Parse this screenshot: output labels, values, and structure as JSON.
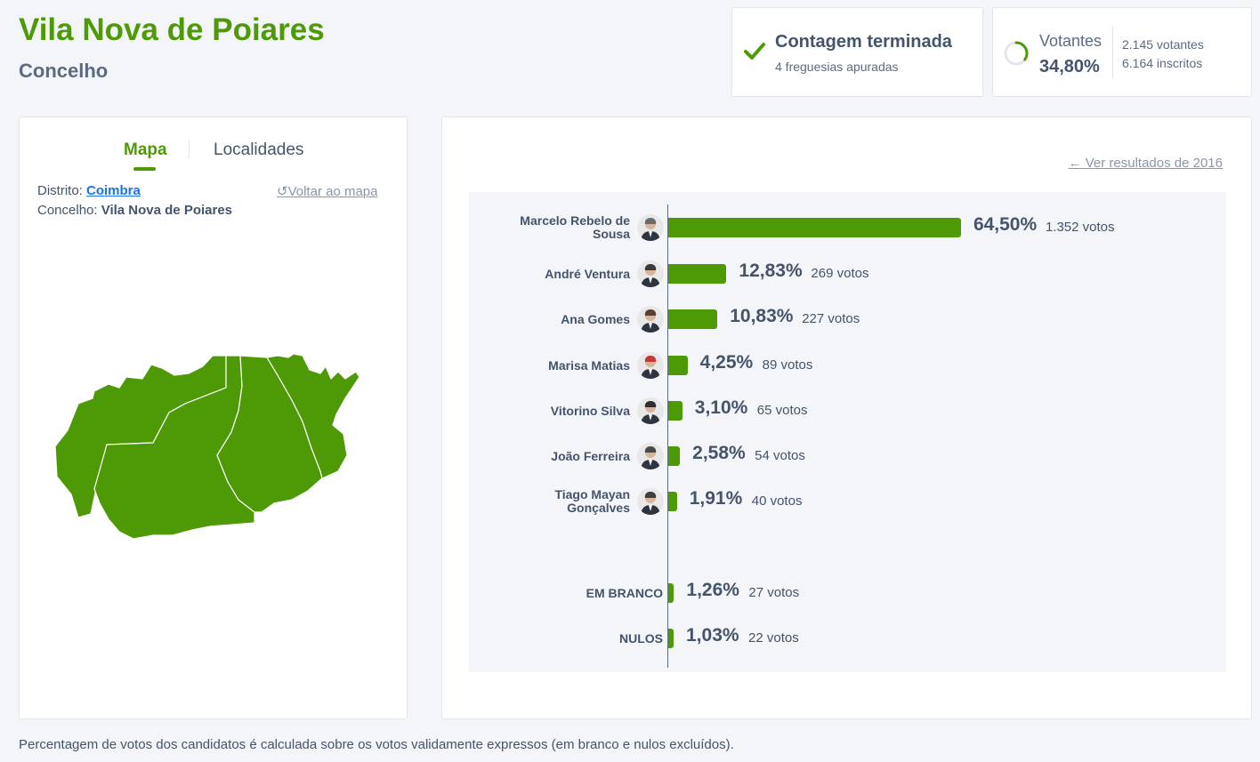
{
  "header": {
    "title": "Vila Nova de Poiares",
    "subtitle": "Concelho"
  },
  "status": {
    "title": "Contagem terminada",
    "sub": "4 freguesias apuradas",
    "icon": "check-icon"
  },
  "turnout": {
    "label": "Votantes",
    "percent": "34,80%",
    "percent_value": 34.8,
    "voters": "2.145 votantes",
    "registered": "6.164 inscritos"
  },
  "map_panel": {
    "tabs": [
      "Mapa",
      "Localidades"
    ],
    "district_label": "Distrito:",
    "district": "Coimbra",
    "concelho_label": "Concelho:",
    "concelho": "Vila Nova de Poiares",
    "back_link": "Voltar ao mapa",
    "map_color": "#4e9a06"
  },
  "results": {
    "previous_link": "Ver resultados de 2016",
    "bar_color": "#4e9a06",
    "candidates": [
      {
        "name": "Marcelo Rebelo de Sousa",
        "pct": "64,50%",
        "value": 64.5,
        "votes": "1.352 votos"
      },
      {
        "name": "André Ventura",
        "pct": "12,83%",
        "value": 12.83,
        "votes": "269 votos"
      },
      {
        "name": "Ana Gomes",
        "pct": "10,83%",
        "value": 10.83,
        "votes": "227 votos"
      },
      {
        "name": "Marisa Matias",
        "pct": "4,25%",
        "value": 4.25,
        "votes": "89 votos"
      },
      {
        "name": "Vitorino Silva",
        "pct": "3,10%",
        "value": 3.1,
        "votes": "65 votos"
      },
      {
        "name": "João Ferreira",
        "pct": "2,58%",
        "value": 2.58,
        "votes": "54 votos"
      },
      {
        "name": "Tiago Mayan Gonçalves",
        "pct": "1,91%",
        "value": 1.91,
        "votes": "40 votos"
      }
    ],
    "special": [
      {
        "name": "EM BRANCO",
        "pct": "1,26%",
        "value": 1.26,
        "votes": "27 votos"
      },
      {
        "name": "NULOS",
        "pct": "1,03%",
        "value": 1.03,
        "votes": "22 votos"
      }
    ]
  },
  "footnote": "Percentagem de votos dos candidatos é calculada sobre os votos validamente expressos (em branco e nulos excluídos)."
}
